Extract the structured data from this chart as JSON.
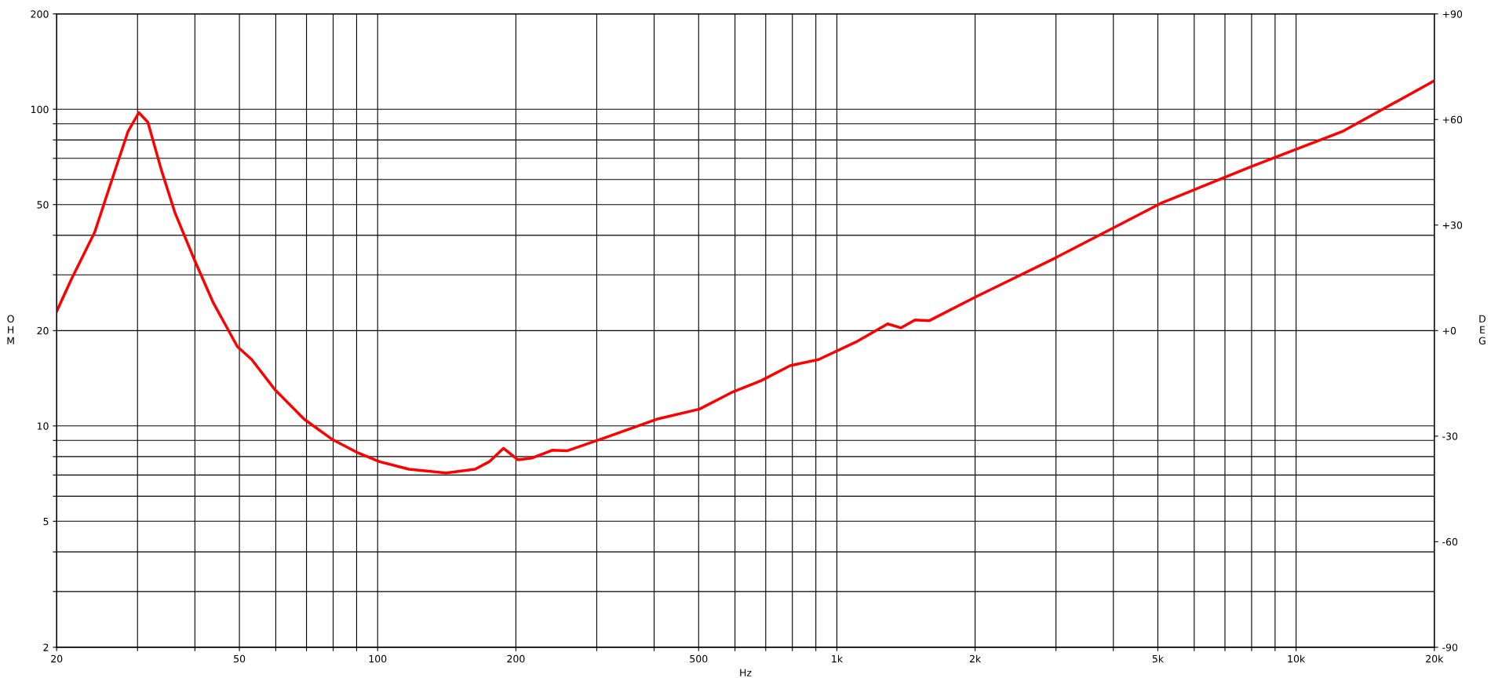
{
  "chart_data": {
    "type": "line",
    "xlabel": "Hz",
    "ylabel": "OHM",
    "y2label": "DEG",
    "log": "xy",
    "grid": true,
    "marker": "none",
    "line_style": "solid",
    "xlim": [
      20,
      20000
    ],
    "ylim": [
      2,
      200
    ],
    "y2lim": [
      -90,
      90
    ],
    "xticks": [
      20,
      {
        "value": 30,
        "label": null
      },
      {
        "value": 40,
        "label": null
      },
      50,
      {
        "value": 60,
        "label": null
      },
      {
        "value": 70,
        "label": null
      },
      {
        "value": 80,
        "label": null
      },
      {
        "value": 90,
        "label": null
      },
      100,
      200,
      {
        "value": 300,
        "label": null
      },
      {
        "value": 400,
        "label": null
      },
      500,
      {
        "value": 600,
        "label": null
      },
      {
        "value": 700,
        "label": null
      },
      {
        "value": 800,
        "label": null
      },
      {
        "value": 900,
        "label": null
      },
      {
        "value": 1000,
        "label": "1k"
      },
      {
        "value": 2000,
        "label": "2k"
      },
      {
        "value": 3000,
        "label": null
      },
      {
        "value": 4000,
        "label": null
      },
      {
        "value": 5000,
        "label": "5k"
      },
      {
        "value": 6000,
        "label": null
      },
      {
        "value": 7000,
        "label": null
      },
      {
        "value": 8000,
        "label": null
      },
      {
        "value": 9000,
        "label": null
      },
      {
        "value": 10000,
        "label": "10k"
      },
      {
        "value": 20000,
        "label": "20k"
      }
    ],
    "yticks": [
      2,
      {
        "value": 3,
        "label": null
      },
      {
        "value": 4,
        "label": null
      },
      5,
      {
        "value": 6,
        "label": null
      },
      {
        "value": 7,
        "label": null
      },
      {
        "value": 8,
        "label": null
      },
      {
        "value": 9,
        "label": null
      },
      10,
      20,
      {
        "value": 30,
        "label": null
      },
      {
        "value": 40,
        "label": null
      },
      50,
      {
        "value": 60,
        "label": null
      },
      {
        "value": 70,
        "label": null
      },
      {
        "value": 80,
        "label": null
      },
      {
        "value": 90,
        "label": null
      },
      100,
      200
    ],
    "y2ticks": [
      {
        "value": -90,
        "label": "-90"
      },
      {
        "value": -60,
        "label": "-60"
      },
      {
        "value": -30,
        "label": "-30"
      },
      {
        "value": 0,
        "label": "+0"
      },
      {
        "value": 30,
        "label": "+30"
      },
      {
        "value": 60,
        "label": "+60"
      },
      {
        "value": 90,
        "label": "+90"
      }
    ],
    "series": [
      {
        "color": "#ff0000",
        "x": [
          20,
          21.5,
          24.2,
          26.6,
          28.6,
          30.2,
          31.6,
          33.8,
          36.2,
          40,
          43.8,
          49.5,
          53.2,
          59.8,
          69.2,
          79.8,
          90,
          101,
          117,
          141,
          163,
          175,
          188,
          202,
          217,
          240,
          259,
          304,
          405,
          502,
          593,
          684,
          791,
          912,
          1100,
          1290,
          1380,
          1480,
          1590,
          2000,
          3000,
          5080,
          8000,
          12600,
          20000
        ],
        "values": [
          23,
          28.9,
          40.9,
          62,
          85,
          97.6,
          91,
          64.4,
          47.1,
          33.2,
          24.6,
          17.8,
          16.2,
          13,
          10.5,
          9.05,
          8.26,
          7.71,
          7.3,
          7.1,
          7.3,
          7.71,
          8.5,
          7.82,
          7.92,
          8.38,
          8.35,
          9.05,
          10.5,
          11.3,
          12.8,
          13.9,
          15.5,
          16.2,
          18.4,
          21,
          20.4,
          21.6,
          21.5,
          25.5,
          34,
          50.5,
          66,
          85,
          123
        ]
      }
    ]
  }
}
